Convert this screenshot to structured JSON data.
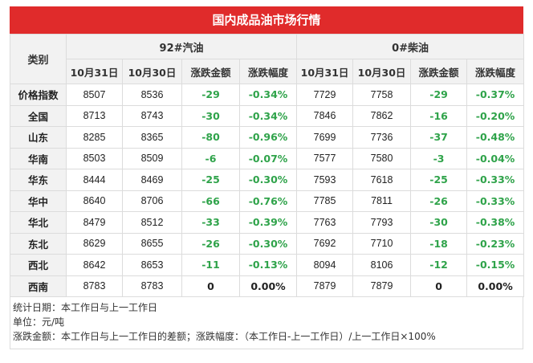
{
  "title": "国内成品油市场行情",
  "header": {
    "category_label": "类别",
    "gasoline_group": "92#汽油",
    "diesel_group": "0#柴油",
    "col_today": "10月31日",
    "col_prev": "10月30日",
    "col_change": "涨跌金额",
    "col_pct": "涨跌幅度"
  },
  "rows": [
    {
      "cat": "价格指数",
      "g_today": "8507",
      "g_prev": "8536",
      "g_chg": "-29",
      "g_pct": "-0.34%",
      "d_today": "7729",
      "d_prev": "7758",
      "d_chg": "-29",
      "d_pct": "-0.37%"
    },
    {
      "cat": "全国",
      "g_today": "8713",
      "g_prev": "8743",
      "g_chg": "-30",
      "g_pct": "-0.34%",
      "d_today": "7846",
      "d_prev": "7862",
      "d_chg": "-16",
      "d_pct": "-0.20%"
    },
    {
      "cat": "山东",
      "g_today": "8285",
      "g_prev": "8365",
      "g_chg": "-80",
      "g_pct": "-0.96%",
      "d_today": "7699",
      "d_prev": "7736",
      "d_chg": "-37",
      "d_pct": "-0.48%"
    },
    {
      "cat": "华南",
      "g_today": "8503",
      "g_prev": "8509",
      "g_chg": "-6",
      "g_pct": "-0.07%",
      "d_today": "7577",
      "d_prev": "7580",
      "d_chg": "-3",
      "d_pct": "-0.04%"
    },
    {
      "cat": "华东",
      "g_today": "8444",
      "g_prev": "8469",
      "g_chg": "-25",
      "g_pct": "-0.30%",
      "d_today": "7593",
      "d_prev": "7618",
      "d_chg": "-25",
      "d_pct": "-0.33%"
    },
    {
      "cat": "华中",
      "g_today": "8640",
      "g_prev": "8706",
      "g_chg": "-66",
      "g_pct": "-0.76%",
      "d_today": "7785",
      "d_prev": "7811",
      "d_chg": "-26",
      "d_pct": "-0.33%"
    },
    {
      "cat": "华北",
      "g_today": "8479",
      "g_prev": "8512",
      "g_chg": "-33",
      "g_pct": "-0.39%",
      "d_today": "7763",
      "d_prev": "7793",
      "d_chg": "-30",
      "d_pct": "-0.38%"
    },
    {
      "cat": "东北",
      "g_today": "8629",
      "g_prev": "8655",
      "g_chg": "-26",
      "g_pct": "-0.30%",
      "d_today": "7692",
      "d_prev": "7710",
      "d_chg": "-18",
      "d_pct": "-0.23%"
    },
    {
      "cat": "西北",
      "g_today": "8642",
      "g_prev": "8653",
      "g_chg": "-11",
      "g_pct": "-0.13%",
      "d_today": "8094",
      "d_prev": "8106",
      "d_chg": "-12",
      "d_pct": "-0.15%"
    },
    {
      "cat": "西南",
      "g_today": "8783",
      "g_prev": "8783",
      "g_chg": "0",
      "g_pct": "0.00%",
      "d_today": "7879",
      "d_prev": "7879",
      "d_chg": "0",
      "d_pct": "0.00%"
    }
  ],
  "notes": [
    "统计日期：本工作日与上一工作日",
    "单位：元/吨",
    "涨跌金额：本工作日与上一工作日的差额；涨跌幅度：（本工作日-上一工作日）/上一工作日×100%"
  ],
  "colors": {
    "title_bg": "#e02b2b",
    "down": "#2fa34a",
    "header_bg": "#f2f2f2"
  }
}
